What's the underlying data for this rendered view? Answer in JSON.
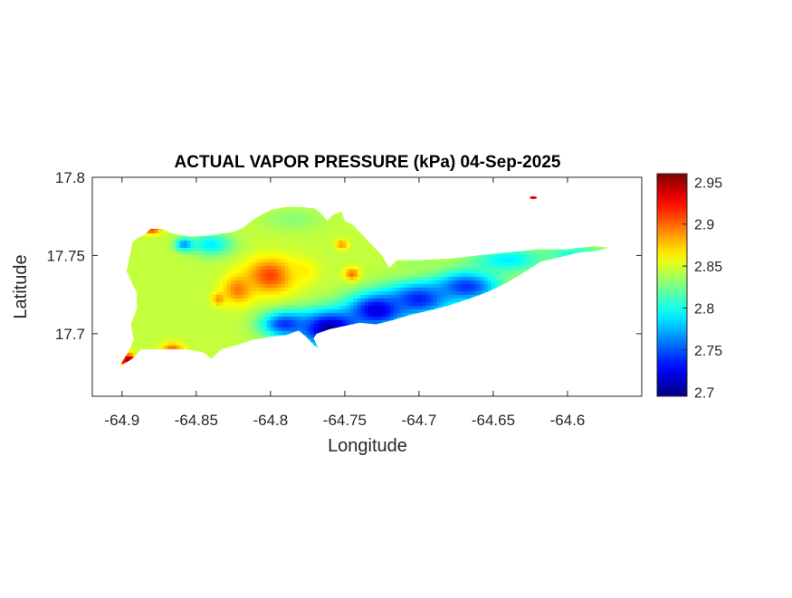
{
  "chart_data": {
    "type": "heatmap",
    "title": "ACTUAL VAPOR PRESSURE (kPa) 04-Sep-2025",
    "xlabel": "Longitude",
    "ylabel": "Latitude",
    "xlim": [
      -64.92,
      -64.55
    ],
    "ylim": [
      17.66,
      17.8
    ],
    "xticks": [
      -64.9,
      -64.85,
      -64.8,
      -64.75,
      -64.7,
      -64.65,
      -64.6
    ],
    "xtick_labels": [
      "-64.9",
      "-64.85",
      "-64.8",
      "-64.75",
      "-64.7",
      "-64.65",
      "-64.6"
    ],
    "yticks": [
      17.7,
      17.75,
      17.8
    ],
    "ytick_labels": [
      "17.7",
      "17.75",
      "17.8"
    ],
    "colorbar": {
      "colormap": "jet",
      "limits": [
        2.695,
        2.96
      ],
      "ticks": [
        2.7,
        2.75,
        2.8,
        2.85,
        2.9,
        2.95
      ],
      "tick_labels": [
        "2.7",
        "2.75",
        "2.8",
        "2.85",
        "2.9",
        "2.95"
      ]
    },
    "grid": false,
    "region_outline": [
      [
        -64.9,
        17.68
      ],
      [
        -64.893,
        17.684
      ],
      [
        -64.887,
        17.69
      ],
      [
        -64.881,
        17.69
      ],
      [
        -64.869,
        17.69
      ],
      [
        -64.856,
        17.69
      ],
      [
        -64.845,
        17.688
      ],
      [
        -64.84,
        17.684
      ],
      [
        -64.833,
        17.69
      ],
      [
        -64.822,
        17.693
      ],
      [
        -64.812,
        17.696
      ],
      [
        -64.8,
        17.698
      ],
      [
        -64.79,
        17.699
      ],
      [
        -64.781,
        17.702
      ],
      [
        -64.776,
        17.698
      ],
      [
        -64.77,
        17.692
      ],
      [
        -64.768,
        17.691
      ],
      [
        -64.771,
        17.697
      ],
      [
        -64.769,
        17.7
      ],
      [
        -64.76,
        17.703
      ],
      [
        -64.75,
        17.705
      ],
      [
        -64.74,
        17.707
      ],
      [
        -64.729,
        17.706
      ],
      [
        -64.72,
        17.708
      ],
      [
        -64.706,
        17.712
      ],
      [
        -64.692,
        17.715
      ],
      [
        -64.68,
        17.718
      ],
      [
        -64.667,
        17.722
      ],
      [
        -64.653,
        17.727
      ],
      [
        -64.64,
        17.733
      ],
      [
        -64.628,
        17.74
      ],
      [
        -64.618,
        17.746
      ],
      [
        -64.605,
        17.749
      ],
      [
        -64.592,
        17.752
      ],
      [
        -64.58,
        17.753
      ],
      [
        -64.572,
        17.755
      ],
      [
        -64.583,
        17.756
      ],
      [
        -64.6,
        17.754
      ],
      [
        -64.62,
        17.754
      ],
      [
        -64.64,
        17.752
      ],
      [
        -64.66,
        17.75
      ],
      [
        -64.68,
        17.748
      ],
      [
        -64.7,
        17.747
      ],
      [
        -64.715,
        17.747
      ],
      [
        -64.72,
        17.742
      ],
      [
        -64.725,
        17.75
      ],
      [
        -64.735,
        17.76
      ],
      [
        -64.745,
        17.77
      ],
      [
        -64.75,
        17.772
      ],
      [
        -64.752,
        17.778
      ],
      [
        -64.758,
        17.776
      ],
      [
        -64.762,
        17.772
      ],
      [
        -64.765,
        17.776
      ],
      [
        -64.77,
        17.78
      ],
      [
        -64.78,
        17.781
      ],
      [
        -64.79,
        17.781
      ],
      [
        -64.8,
        17.779
      ],
      [
        -64.81,
        17.774
      ],
      [
        -64.818,
        17.768
      ],
      [
        -64.825,
        17.765
      ],
      [
        -64.84,
        17.763
      ],
      [
        -64.853,
        17.762
      ],
      [
        -64.866,
        17.764
      ],
      [
        -64.873,
        17.767
      ],
      [
        -64.881,
        17.767
      ],
      [
        -64.885,
        17.763
      ],
      [
        -64.89,
        17.761
      ],
      [
        -64.893,
        17.758
      ],
      [
        -64.895,
        17.748
      ],
      [
        -64.897,
        17.74
      ],
      [
        -64.893,
        17.732
      ],
      [
        -64.89,
        17.726
      ],
      [
        -64.89,
        17.716
      ],
      [
        -64.894,
        17.706
      ],
      [
        -64.892,
        17.696
      ],
      [
        -64.896,
        17.688
      ],
      [
        -64.902,
        17.679
      ]
    ],
    "value_features": [
      {
        "lon": -64.8,
        "lat": 17.737,
        "value": 2.91,
        "spread_lon": 0.016,
        "spread_lat": 0.011
      },
      {
        "lon": -64.822,
        "lat": 17.728,
        "value": 2.895,
        "spread_lon": 0.01,
        "spread_lat": 0.009
      },
      {
        "lon": -64.745,
        "lat": 17.738,
        "value": 2.9,
        "spread_lon": 0.005,
        "spread_lat": 0.004
      },
      {
        "lon": -64.778,
        "lat": 17.74,
        "value": 2.865,
        "spread_lon": 0.01,
        "spread_lat": 0.008
      },
      {
        "lon": -64.835,
        "lat": 17.722,
        "value": 2.89,
        "spread_lon": 0.004,
        "spread_lat": 0.004
      },
      {
        "lon": -64.866,
        "lat": 17.69,
        "value": 2.9,
        "spread_lon": 0.007,
        "spread_lat": 0.004
      },
      {
        "lon": -64.88,
        "lat": 17.767,
        "value": 2.92,
        "spread_lon": 0.006,
        "spread_lat": 0.003
      },
      {
        "lon": -64.896,
        "lat": 17.683,
        "value": 2.96,
        "spread_lon": 0.005,
        "spread_lat": 0.004
      },
      {
        "lon": -64.752,
        "lat": 17.757,
        "value": 2.89,
        "spread_lon": 0.004,
        "spread_lat": 0.003
      },
      {
        "lon": -64.76,
        "lat": 17.703,
        "value": 2.7,
        "spread_lon": 0.022,
        "spread_lat": 0.012
      },
      {
        "lon": -64.728,
        "lat": 17.715,
        "value": 2.715,
        "spread_lon": 0.02,
        "spread_lat": 0.011
      },
      {
        "lon": -64.7,
        "lat": 17.722,
        "value": 2.735,
        "spread_lon": 0.022,
        "spread_lat": 0.011
      },
      {
        "lon": -64.668,
        "lat": 17.73,
        "value": 2.74,
        "spread_lon": 0.022,
        "spread_lat": 0.01
      },
      {
        "lon": -64.79,
        "lat": 17.706,
        "value": 2.74,
        "spread_lon": 0.016,
        "spread_lat": 0.008
      },
      {
        "lon": -64.84,
        "lat": 17.757,
        "value": 2.79,
        "spread_lon": 0.014,
        "spread_lat": 0.007
      },
      {
        "lon": -64.858,
        "lat": 17.757,
        "value": 2.765,
        "spread_lon": 0.006,
        "spread_lat": 0.004
      },
      {
        "lon": -64.64,
        "lat": 17.747,
        "value": 2.79,
        "spread_lon": 0.024,
        "spread_lat": 0.008
      },
      {
        "lon": -64.595,
        "lat": 17.751,
        "value": 2.8,
        "spread_lon": 0.02,
        "spread_lat": 0.005
      },
      {
        "lon": -64.785,
        "lat": 17.773,
        "value": 2.83,
        "spread_lon": 0.02,
        "spread_lat": 0.007
      },
      {
        "lon": -64.7,
        "lat": 17.744,
        "value": 2.835,
        "spread_lon": 0.016,
        "spread_lat": 0.006
      }
    ],
    "background_value": 2.845,
    "isolated_points": [
      {
        "lon": -64.623,
        "lat": 17.787,
        "value": 2.93
      }
    ]
  }
}
